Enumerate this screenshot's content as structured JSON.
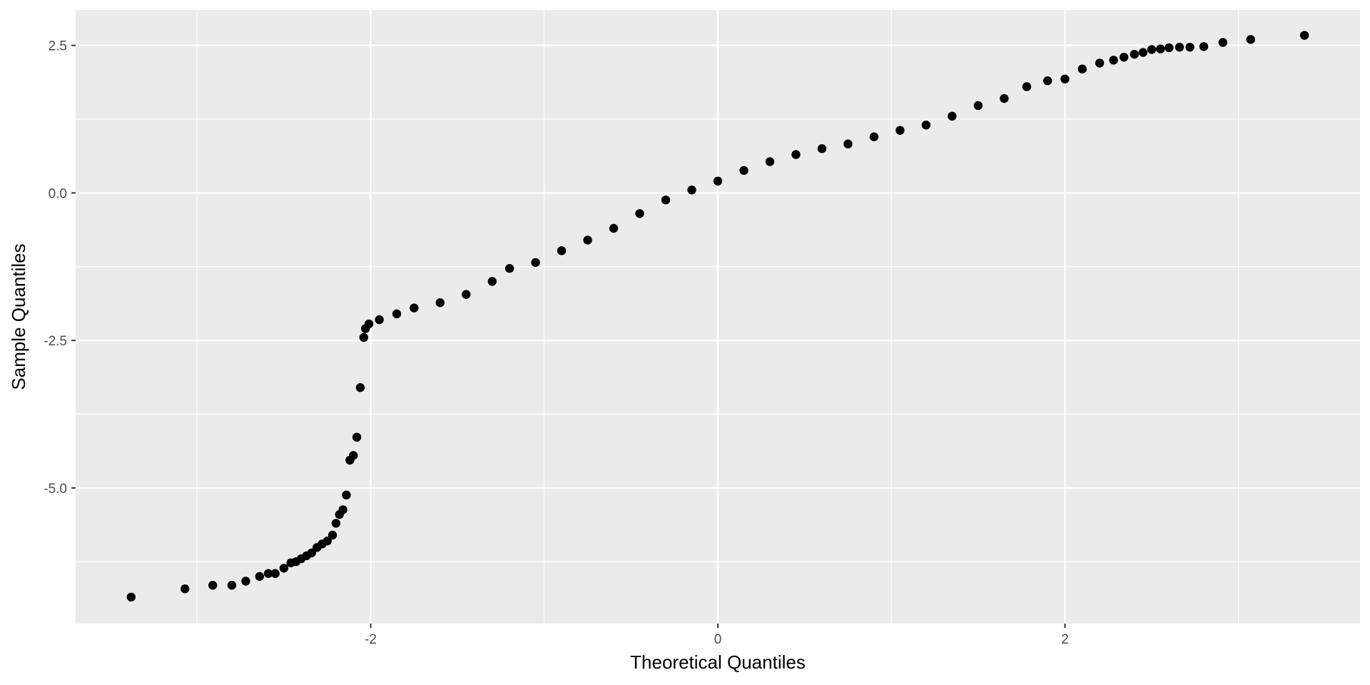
{
  "chart_data": {
    "type": "scatter",
    "title": "",
    "xlabel": "Theoretical Quantiles",
    "ylabel": "Sample Quantiles",
    "xlim": [
      -3.7,
      3.7
    ],
    "ylim": [
      -7.3,
      3.1
    ],
    "x_ticks": [
      {
        "value": -2,
        "label": "-2"
      },
      {
        "value": 0,
        "label": "0"
      },
      {
        "value": 2,
        "label": "2"
      }
    ],
    "y_ticks": [
      {
        "value": 2.5,
        "label": "2.5"
      },
      {
        "value": 0.0,
        "label": "0.0"
      },
      {
        "value": -2.5,
        "label": "-2.5"
      },
      {
        "value": -5.0,
        "label": "-5.0"
      }
    ],
    "x_minor_ticks": [
      -3,
      -1,
      1,
      3
    ],
    "y_minor_ticks": [
      1.25,
      -1.25,
      -3.75,
      -6.25
    ],
    "points": [
      [
        -3.38,
        -6.85
      ],
      [
        -3.07,
        -6.71
      ],
      [
        -2.91,
        -6.65
      ],
      [
        -2.8,
        -6.65
      ],
      [
        -2.72,
        -6.58
      ],
      [
        -2.64,
        -6.5
      ],
      [
        -2.59,
        -6.45
      ],
      [
        -2.55,
        -6.45
      ],
      [
        -2.5,
        -6.36
      ],
      [
        -2.46,
        -6.27
      ],
      [
        -2.43,
        -6.25
      ],
      [
        -2.4,
        -6.2
      ],
      [
        -2.37,
        -6.15
      ],
      [
        -2.34,
        -6.1
      ],
      [
        -2.31,
        -6.01
      ],
      [
        -2.28,
        -5.95
      ],
      [
        -2.25,
        -5.9
      ],
      [
        -2.22,
        -5.8
      ],
      [
        -2.2,
        -5.6
      ],
      [
        -2.18,
        -5.45
      ],
      [
        -2.16,
        -5.37
      ],
      [
        -2.14,
        -5.12
      ],
      [
        -2.12,
        -4.53
      ],
      [
        -2.1,
        -4.45
      ],
      [
        -2.08,
        -4.14
      ],
      [
        -2.06,
        -3.3
      ],
      [
        -2.04,
        -2.45
      ],
      [
        -2.03,
        -2.3
      ],
      [
        -2.01,
        -2.22
      ],
      [
        -1.95,
        -2.15
      ],
      [
        -1.85,
        -2.05
      ],
      [
        -1.75,
        -1.95
      ],
      [
        -1.6,
        -1.86
      ],
      [
        -1.45,
        -1.72
      ],
      [
        -1.3,
        -1.5
      ],
      [
        -1.2,
        -1.28
      ],
      [
        -1.05,
        -1.18
      ],
      [
        -0.9,
        -0.98
      ],
      [
        -0.75,
        -0.8
      ],
      [
        -0.6,
        -0.6
      ],
      [
        -0.45,
        -0.35
      ],
      [
        -0.3,
        -0.12
      ],
      [
        -0.15,
        0.05
      ],
      [
        0.0,
        0.2
      ],
      [
        0.15,
        0.38
      ],
      [
        0.3,
        0.53
      ],
      [
        0.45,
        0.65
      ],
      [
        0.6,
        0.75
      ],
      [
        0.75,
        0.83
      ],
      [
        0.9,
        0.95
      ],
      [
        1.05,
        1.06
      ],
      [
        1.2,
        1.15
      ],
      [
        1.35,
        1.3
      ],
      [
        1.5,
        1.48
      ],
      [
        1.65,
        1.6
      ],
      [
        1.78,
        1.8
      ],
      [
        1.9,
        1.9
      ],
      [
        2.0,
        1.93
      ],
      [
        2.1,
        2.1
      ],
      [
        2.2,
        2.2
      ],
      [
        2.28,
        2.25
      ],
      [
        2.34,
        2.3
      ],
      [
        2.4,
        2.35
      ],
      [
        2.45,
        2.38
      ],
      [
        2.5,
        2.43
      ],
      [
        2.55,
        2.44
      ],
      [
        2.6,
        2.46
      ],
      [
        2.66,
        2.47
      ],
      [
        2.72,
        2.47
      ],
      [
        2.8,
        2.48
      ],
      [
        2.91,
        2.55
      ],
      [
        3.07,
        2.6
      ],
      [
        3.38,
        2.67
      ]
    ]
  }
}
